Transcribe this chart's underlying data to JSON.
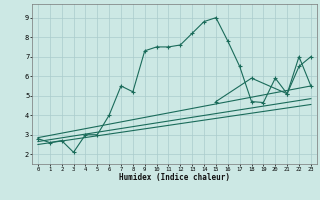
{
  "xlabel": "Humidex (Indice chaleur)",
  "bg_color": "#cce8e4",
  "line_color": "#1a6b5a",
  "grid_color": "#aacccc",
  "xlim": [
    -0.5,
    23.5
  ],
  "ylim": [
    1.5,
    9.7
  ],
  "xticks": [
    0,
    1,
    2,
    3,
    4,
    5,
    6,
    7,
    8,
    9,
    10,
    11,
    12,
    13,
    14,
    15,
    16,
    17,
    18,
    19,
    20,
    21,
    22,
    23
  ],
  "yticks": [
    2,
    3,
    4,
    5,
    6,
    7,
    8,
    9
  ],
  "line1_x": [
    0,
    1,
    2,
    3,
    4,
    5,
    6,
    7,
    8,
    9,
    10,
    11,
    12,
    13,
    14,
    15,
    16,
    17,
    18,
    19,
    20,
    21,
    22,
    23
  ],
  "line1_y": [
    2.8,
    2.6,
    2.7,
    2.1,
    3.0,
    3.0,
    4.0,
    5.5,
    5.2,
    7.3,
    7.5,
    7.5,
    7.6,
    8.2,
    8.8,
    9.0,
    7.8,
    6.5,
    4.7,
    4.65,
    5.9,
    5.1,
    6.5,
    7.0
  ],
  "line2_x": [
    0,
    23
  ],
  "line2_y": [
    2.85,
    5.5
  ],
  "line3_x": [
    0,
    23
  ],
  "line3_y": [
    2.65,
    4.85
  ],
  "line4_x": [
    0,
    23
  ],
  "line4_y": [
    2.5,
    4.55
  ],
  "line5_x": [
    15,
    18,
    21,
    22,
    23
  ],
  "line5_y": [
    4.7,
    5.9,
    5.1,
    7.0,
    5.5
  ]
}
